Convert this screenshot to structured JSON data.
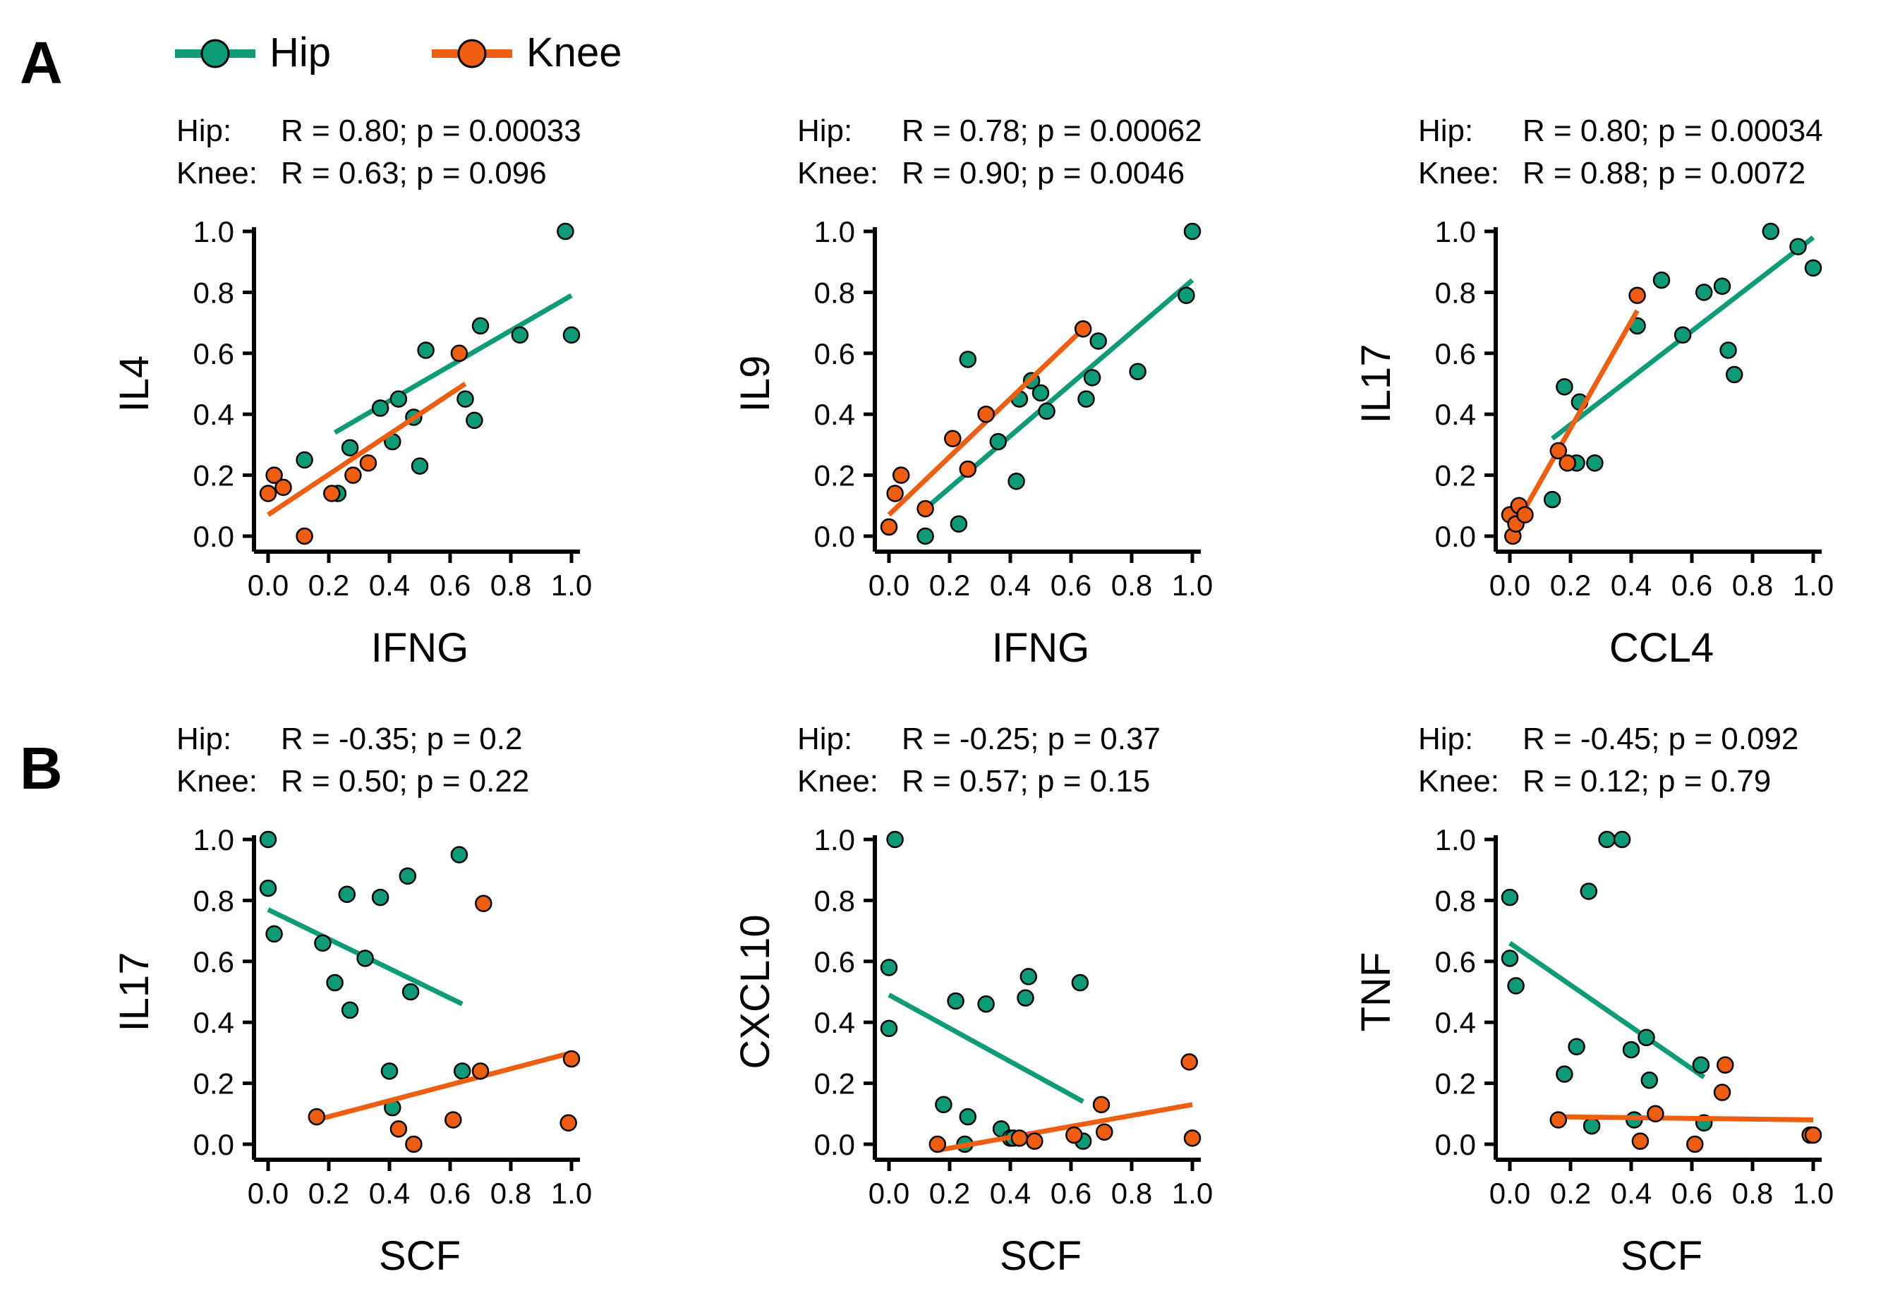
{
  "colors": {
    "hip": "#0e9c78",
    "knee": "#ef5e10",
    "axis": "#000000"
  },
  "legend": {
    "hip_label": "Hip",
    "knee_label": "Knee"
  },
  "panels": {
    "A": "A",
    "B": "B"
  },
  "stat_prefix": {
    "hip": "Hip:",
    "knee": "Knee:"
  },
  "chart_data": [
    {
      "type": "scatter",
      "panel": "A",
      "xlabel": "IFNG",
      "ylabel": "IL4",
      "xlim": [
        0,
        1
      ],
      "ylim": [
        0,
        1
      ],
      "xticks": [
        "0.0",
        "0.2",
        "0.4",
        "0.6",
        "0.8",
        "1.0"
      ],
      "yticks": [
        "0.0",
        "0.2",
        "0.4",
        "0.6",
        "0.8",
        "1.0"
      ],
      "stats": {
        "hip": "R = 0.80; p = 0.00033",
        "knee": "R = 0.63; p = 0.096"
      },
      "series": [
        {
          "name": "Hip",
          "color": "hip",
          "points": [
            [
              0.12,
              0.25
            ],
            [
              0.23,
              0.14
            ],
            [
              0.27,
              0.29
            ],
            [
              0.37,
              0.42
            ],
            [
              0.41,
              0.31
            ],
            [
              0.43,
              0.45
            ],
            [
              0.48,
              0.39
            ],
            [
              0.5,
              0.23
            ],
            [
              0.52,
              0.61
            ],
            [
              0.65,
              0.45
            ],
            [
              0.68,
              0.38
            ],
            [
              0.7,
              0.69
            ],
            [
              0.83,
              0.66
            ],
            [
              0.98,
              1.0
            ],
            [
              1.0,
              0.66
            ]
          ],
          "fit": [
            [
              0.22,
              0.34
            ],
            [
              1.0,
              0.79
            ]
          ]
        },
        {
          "name": "Knee",
          "color": "knee",
          "points": [
            [
              0.0,
              0.14
            ],
            [
              0.02,
              0.2
            ],
            [
              0.05,
              0.16
            ],
            [
              0.12,
              0.0
            ],
            [
              0.21,
              0.14
            ],
            [
              0.28,
              0.2
            ],
            [
              0.33,
              0.24
            ],
            [
              0.63,
              0.6
            ]
          ],
          "fit": [
            [
              0.0,
              0.07
            ],
            [
              0.65,
              0.5
            ]
          ]
        }
      ]
    },
    {
      "type": "scatter",
      "panel": "A",
      "xlabel": "IFNG",
      "ylabel": "IL9",
      "xlim": [
        0,
        1
      ],
      "ylim": [
        0,
        1
      ],
      "xticks": [
        "0.0",
        "0.2",
        "0.4",
        "0.6",
        "0.8",
        "1.0"
      ],
      "yticks": [
        "0.0",
        "0.2",
        "0.4",
        "0.6",
        "0.8",
        "1.0"
      ],
      "stats": {
        "hip": "R = 0.78; p = 0.00062",
        "knee": "R = 0.90; p = 0.0046"
      },
      "series": [
        {
          "name": "Hip",
          "color": "hip",
          "points": [
            [
              0.12,
              0.0
            ],
            [
              0.23,
              0.04
            ],
            [
              0.26,
              0.58
            ],
            [
              0.36,
              0.31
            ],
            [
              0.42,
              0.18
            ],
            [
              0.43,
              0.45
            ],
            [
              0.47,
              0.51
            ],
            [
              0.5,
              0.47
            ],
            [
              0.52,
              0.41
            ],
            [
              0.65,
              0.45
            ],
            [
              0.67,
              0.52
            ],
            [
              0.69,
              0.64
            ],
            [
              0.82,
              0.54
            ],
            [
              0.98,
              0.79
            ],
            [
              1.0,
              1.0
            ]
          ],
          "fit": [
            [
              0.12,
              0.09
            ],
            [
              1.0,
              0.84
            ]
          ]
        },
        {
          "name": "Knee",
          "color": "knee",
          "points": [
            [
              0.0,
              0.03
            ],
            [
              0.02,
              0.14
            ],
            [
              0.04,
              0.2
            ],
            [
              0.12,
              0.09
            ],
            [
              0.21,
              0.32
            ],
            [
              0.26,
              0.22
            ],
            [
              0.32,
              0.4
            ],
            [
              0.64,
              0.68
            ]
          ],
          "fit": [
            [
              0.0,
              0.07
            ],
            [
              0.64,
              0.68
            ]
          ]
        }
      ]
    },
    {
      "type": "scatter",
      "panel": "A",
      "xlabel": "CCL4",
      "ylabel": "IL17",
      "xlim": [
        0,
        1
      ],
      "ylim": [
        0,
        1
      ],
      "xticks": [
        "0.0",
        "0.2",
        "0.4",
        "0.6",
        "0.8",
        "1.0"
      ],
      "yticks": [
        "0.0",
        "0.2",
        "0.4",
        "0.6",
        "0.8",
        "1.0"
      ],
      "stats": {
        "hip": "R = 0.80; p = 0.00034",
        "knee": "R = 0.88; p = 0.0072"
      },
      "series": [
        {
          "name": "Hip",
          "color": "hip",
          "points": [
            [
              0.14,
              0.12
            ],
            [
              0.18,
              0.49
            ],
            [
              0.22,
              0.24
            ],
            [
              0.23,
              0.44
            ],
            [
              0.28,
              0.24
            ],
            [
              0.42,
              0.69
            ],
            [
              0.5,
              0.84
            ],
            [
              0.57,
              0.66
            ],
            [
              0.64,
              0.8
            ],
            [
              0.7,
              0.82
            ],
            [
              0.72,
              0.61
            ],
            [
              0.74,
              0.53
            ],
            [
              0.86,
              1.0
            ],
            [
              0.95,
              0.95
            ],
            [
              1.0,
              0.88
            ]
          ],
          "fit": [
            [
              0.14,
              0.32
            ],
            [
              1.0,
              0.98
            ]
          ]
        },
        {
          "name": "Knee",
          "color": "knee",
          "points": [
            [
              0.0,
              0.07
            ],
            [
              0.01,
              0.0
            ],
            [
              0.02,
              0.04
            ],
            [
              0.03,
              0.1
            ],
            [
              0.05,
              0.07
            ],
            [
              0.16,
              0.28
            ],
            [
              0.19,
              0.24
            ],
            [
              0.42,
              0.79
            ]
          ],
          "fit": [
            [
              0.01,
              0.02
            ],
            [
              0.42,
              0.74
            ]
          ]
        }
      ]
    },
    {
      "type": "scatter",
      "panel": "B",
      "xlabel": "SCF",
      "ylabel": "IL17",
      "xlim": [
        0,
        1
      ],
      "ylim": [
        0,
        1
      ],
      "xticks": [
        "0.0",
        "0.2",
        "0.4",
        "0.6",
        "0.8",
        "1.0"
      ],
      "yticks": [
        "0.0",
        "0.2",
        "0.4",
        "0.6",
        "0.8",
        "1.0"
      ],
      "stats": {
        "hip": "R = -0.35; p = 0.2",
        "knee": "R =  0.50; p = 0.22"
      },
      "series": [
        {
          "name": "Hip",
          "color": "hip",
          "points": [
            [
              0.0,
              1.0
            ],
            [
              0.0,
              0.84
            ],
            [
              0.02,
              0.69
            ],
            [
              0.18,
              0.66
            ],
            [
              0.22,
              0.53
            ],
            [
              0.26,
              0.82
            ],
            [
              0.27,
              0.44
            ],
            [
              0.32,
              0.61
            ],
            [
              0.37,
              0.81
            ],
            [
              0.4,
              0.24
            ],
            [
              0.41,
              0.12
            ],
            [
              0.46,
              0.88
            ],
            [
              0.47,
              0.5
            ],
            [
              0.63,
              0.95
            ],
            [
              0.64,
              0.24
            ]
          ],
          "fit": [
            [
              0.0,
              0.77
            ],
            [
              0.64,
              0.46
            ]
          ]
        },
        {
          "name": "Knee",
          "color": "knee",
          "points": [
            [
              0.16,
              0.09
            ],
            [
              0.43,
              0.05
            ],
            [
              0.48,
              0.0
            ],
            [
              0.61,
              0.08
            ],
            [
              0.7,
              0.24
            ],
            [
              0.71,
              0.79
            ],
            [
              0.99,
              0.07
            ],
            [
              1.0,
              0.28
            ]
          ],
          "fit": [
            [
              0.16,
              0.08
            ],
            [
              1.0,
              0.3
            ]
          ]
        }
      ]
    },
    {
      "type": "scatter",
      "panel": "B",
      "xlabel": "SCF",
      "ylabel": "CXCL10",
      "xlim": [
        0,
        1
      ],
      "ylim": [
        0,
        1
      ],
      "xticks": [
        "0.0",
        "0.2",
        "0.4",
        "0.6",
        "0.8",
        "1.0"
      ],
      "yticks": [
        "0.0",
        "0.2",
        "0.4",
        "0.6",
        "0.8",
        "1.0"
      ],
      "stats": {
        "hip": "R = -0.25; p = 0.37",
        "knee": "R =  0.57; p = 0.15"
      },
      "series": [
        {
          "name": "Hip",
          "color": "hip",
          "points": [
            [
              0.0,
              0.58
            ],
            [
              0.0,
              0.38
            ],
            [
              0.02,
              1.0
            ],
            [
              0.18,
              0.13
            ],
            [
              0.22,
              0.47
            ],
            [
              0.26,
              0.09
            ],
            [
              0.25,
              0.0
            ],
            [
              0.32,
              0.46
            ],
            [
              0.37,
              0.05
            ],
            [
              0.4,
              0.02
            ],
            [
              0.41,
              0.02
            ],
            [
              0.45,
              0.48
            ],
            [
              0.46,
              0.55
            ],
            [
              0.63,
              0.53
            ],
            [
              0.64,
              0.01
            ]
          ],
          "fit": [
            [
              0.0,
              0.49
            ],
            [
              0.64,
              0.14
            ]
          ]
        },
        {
          "name": "Knee",
          "color": "knee",
          "points": [
            [
              0.16,
              0.0
            ],
            [
              0.43,
              0.02
            ],
            [
              0.48,
              0.01
            ],
            [
              0.61,
              0.03
            ],
            [
              0.7,
              0.13
            ],
            [
              0.71,
              0.04
            ],
            [
              0.99,
              0.27
            ],
            [
              1.0,
              0.02
            ]
          ],
          "fit": [
            [
              0.16,
              -0.02
            ],
            [
              1.0,
              0.13
            ]
          ]
        }
      ]
    },
    {
      "type": "scatter",
      "panel": "B",
      "xlabel": "SCF",
      "ylabel": "TNF",
      "xlim": [
        0,
        1
      ],
      "ylim": [
        0,
        1
      ],
      "xticks": [
        "0.0",
        "0.2",
        "0.4",
        "0.6",
        "0.8",
        "1.0"
      ],
      "yticks": [
        "0.0",
        "0.2",
        "0.4",
        "0.6",
        "0.8",
        "1.0"
      ],
      "stats": {
        "hip": "R = -0.45; p = 0.092",
        "knee": "R = 0.12;  p = 0.79"
      },
      "series": [
        {
          "name": "Hip",
          "color": "hip",
          "points": [
            [
              0.0,
              0.81
            ],
            [
              0.0,
              0.61
            ],
            [
              0.02,
              0.52
            ],
            [
              0.18,
              0.23
            ],
            [
              0.22,
              0.32
            ],
            [
              0.26,
              0.83
            ],
            [
              0.27,
              0.06
            ],
            [
              0.32,
              1.0
            ],
            [
              0.37,
              1.0
            ],
            [
              0.4,
              0.31
            ],
            [
              0.41,
              0.08
            ],
            [
              0.45,
              0.35
            ],
            [
              0.46,
              0.21
            ],
            [
              0.63,
              0.26
            ],
            [
              0.64,
              0.07
            ]
          ],
          "fit": [
            [
              0.0,
              0.66
            ],
            [
              0.64,
              0.22
            ]
          ]
        },
        {
          "name": "Knee",
          "color": "knee",
          "points": [
            [
              0.16,
              0.08
            ],
            [
              0.43,
              0.01
            ],
            [
              0.48,
              0.1
            ],
            [
              0.61,
              0.0
            ],
            [
              0.7,
              0.17
            ],
            [
              0.71,
              0.26
            ],
            [
              0.99,
              0.03
            ],
            [
              1.0,
              0.03
            ]
          ],
          "fit": [
            [
              0.16,
              0.09
            ],
            [
              1.0,
              0.08
            ]
          ]
        }
      ]
    }
  ]
}
